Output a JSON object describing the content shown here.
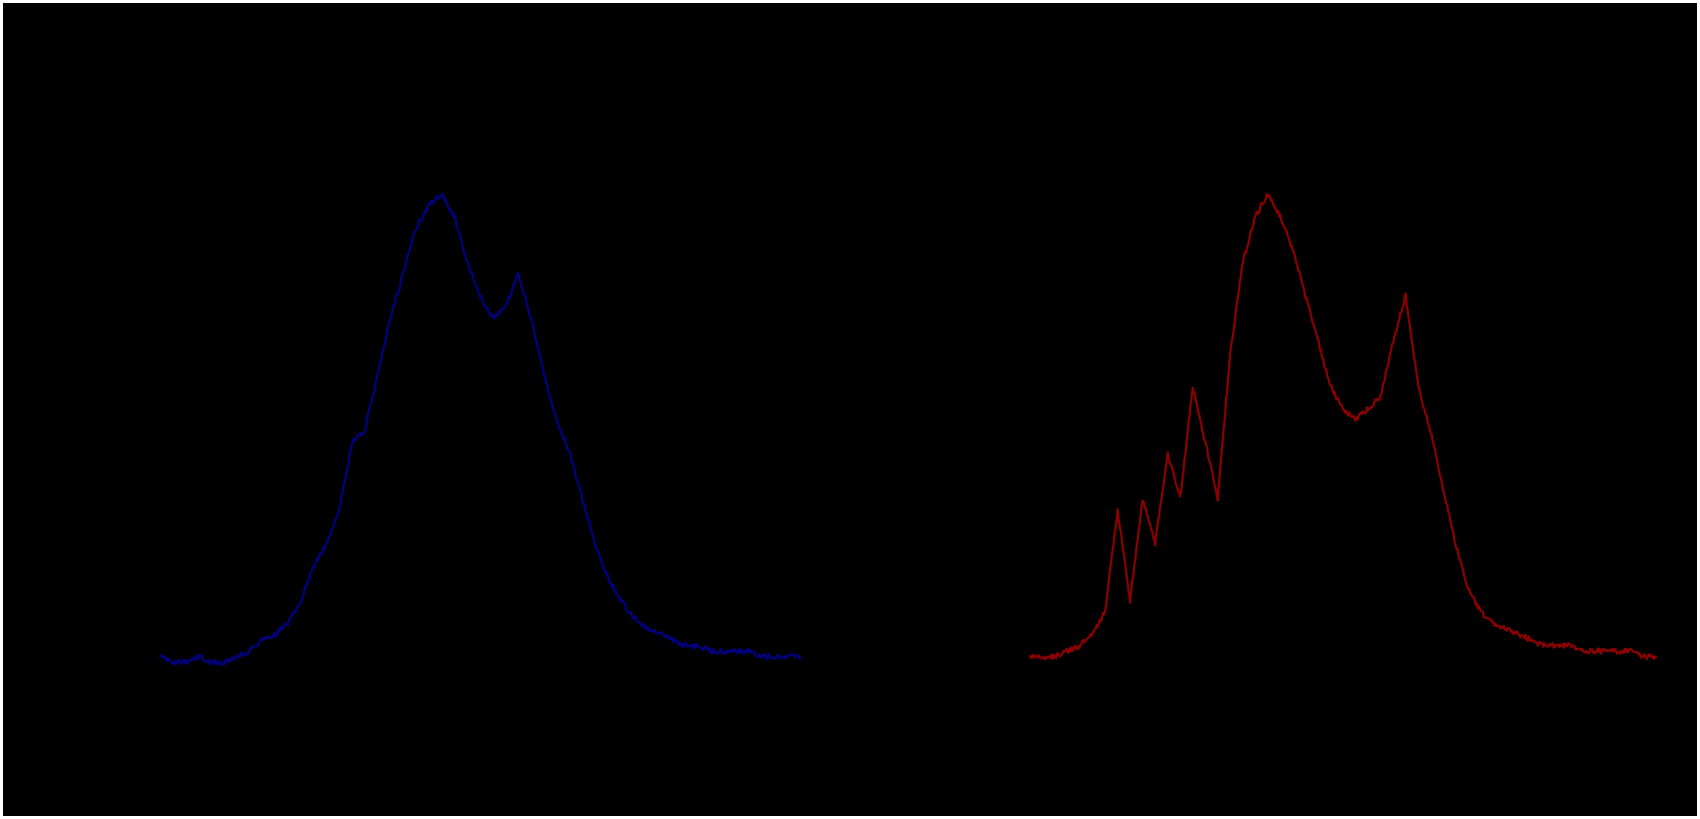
{
  "chart_data": [
    {
      "type": "line",
      "title": "",
      "xlabel": "",
      "ylabel": "",
      "grid": false,
      "legend": "none",
      "xlim": [
        0,
        100
      ],
      "ylim": [
        0,
        100
      ],
      "series": [
        {
          "color": "#000080",
          "x": [
            0,
            2,
            4,
            6,
            8,
            10,
            12,
            14,
            16,
            18,
            20,
            22,
            24,
            26,
            28,
            30,
            32,
            34,
            36,
            38,
            40,
            42,
            44,
            46,
            48,
            50,
            52,
            54,
            56,
            58,
            60,
            62,
            64,
            66,
            68,
            70,
            72,
            74,
            76,
            78,
            80,
            82,
            84,
            86,
            88,
            90,
            92,
            94,
            96,
            98,
            100
          ],
          "values": [
            2,
            1,
            1,
            2,
            1,
            1,
            2,
            3,
            5,
            6,
            8,
            12,
            18,
            22,
            28,
            40,
            42,
            52,
            62,
            70,
            78,
            82,
            84,
            80,
            72,
            66,
            62,
            64,
            70,
            62,
            52,
            44,
            38,
            30,
            22,
            16,
            12,
            9,
            7,
            6,
            5,
            4,
            4,
            3,
            3,
            3,
            3,
            2,
            2,
            2,
            2
          ]
        },
        {
          "color": "#8b0000",
          "x": [
            0,
            2,
            4,
            6,
            8,
            10,
            12,
            14,
            16,
            18,
            20,
            22,
            24,
            26,
            28,
            30,
            32,
            34,
            36,
            38,
            40,
            42,
            44,
            46,
            48,
            50,
            52,
            54,
            56,
            58,
            60,
            62,
            64,
            66,
            68,
            70,
            72,
            74,
            76,
            78,
            80,
            82,
            84,
            86,
            88,
            90,
            92,
            94,
            96,
            98,
            100
          ],
          "values": [
            2,
            2,
            2,
            3,
            4,
            6,
            10,
            28,
            12,
            30,
            22,
            38,
            30,
            50,
            40,
            30,
            56,
            72,
            80,
            84,
            80,
            74,
            66,
            58,
            50,
            46,
            44,
            46,
            48,
            58,
            66,
            50,
            42,
            32,
            22,
            14,
            10,
            8,
            7,
            6,
            5,
            4,
            4,
            4,
            3,
            3,
            3,
            3,
            3,
            2,
            2
          ]
        }
      ]
    }
  ]
}
